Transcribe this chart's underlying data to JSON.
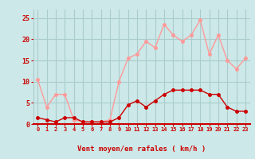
{
  "x": [
    0,
    1,
    2,
    3,
    4,
    5,
    6,
    7,
    8,
    9,
    10,
    11,
    12,
    13,
    14,
    15,
    16,
    17,
    18,
    19,
    20,
    21,
    22,
    23
  ],
  "rafales": [
    10.5,
    4.0,
    7.0,
    7.0,
    1.0,
    0.5,
    0.5,
    0.5,
    1.0,
    10.0,
    15.5,
    16.5,
    19.5,
    18.0,
    23.5,
    21.0,
    19.5,
    21.0,
    24.5,
    16.5,
    21.0,
    15.0,
    13.0,
    15.5
  ],
  "moyen": [
    1.5,
    1.0,
    0.5,
    1.5,
    1.5,
    0.5,
    0.5,
    0.5,
    0.5,
    1.5,
    4.5,
    5.5,
    4.0,
    5.5,
    7.0,
    8.0,
    8.0,
    8.0,
    8.0,
    7.0,
    7.0,
    4.0,
    3.0,
    3.0
  ],
  "xlim": [
    -0.5,
    23.5
  ],
  "ylim": [
    0,
    27
  ],
  "yticks": [
    0,
    5,
    10,
    15,
    20,
    25
  ],
  "xticks": [
    0,
    1,
    2,
    3,
    4,
    5,
    6,
    7,
    8,
    9,
    10,
    11,
    12,
    13,
    14,
    15,
    16,
    17,
    18,
    19,
    20,
    21,
    22,
    23
  ],
  "xlabel": "Vent moyen/en rafales ( km/h )",
  "bg_color": "#cce8e8",
  "grid_color": "#aacccc",
  "line1_color": "#ff9999",
  "line2_color": "#cc0000",
  "xlabel_color": "#cc0000",
  "tick_color": "#cc0000",
  "marker_size": 2.5,
  "line_width": 1.0
}
